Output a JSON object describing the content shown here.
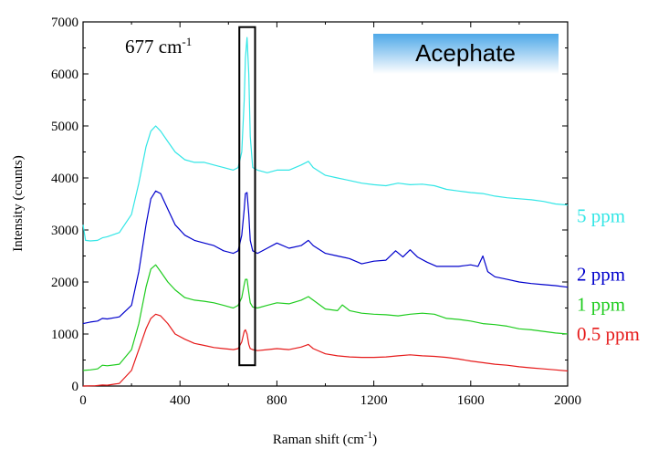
{
  "chart_data": {
    "type": "line",
    "title": "Acephate",
    "xlabel": "Raman shift (cm",
    "xlabel_sup": "-1",
    "xlabel_end": ")",
    "ylabel": "Intensity (counts)",
    "xlim": [
      0,
      2000
    ],
    "ylim": [
      0,
      7000
    ],
    "xticks": [
      0,
      400,
      800,
      1200,
      1600,
      2000
    ],
    "yticks": [
      0,
      1000,
      2000,
      3000,
      4000,
      5000,
      6000,
      7000
    ],
    "xtick_labels": [
      "0",
      "400",
      "800",
      "1200",
      "1600",
      "2000"
    ],
    "ytick_labels": [
      "0",
      "1000",
      "2000",
      "3000",
      "4000",
      "5000",
      "6000",
      "7000"
    ],
    "grid": false,
    "annotation": {
      "text": "677 cm",
      "sup": "-1",
      "box_x_range": [
        645,
        710
      ],
      "box_y_range": [
        400,
        6900
      ]
    },
    "title_box_colors": [
      "#4ea8e8",
      "#ffffff"
    ],
    "series": [
      {
        "name": "5 ppm",
        "color": "#33e6e6",
        "x": [
          0,
          10,
          30,
          60,
          80,
          100,
          150,
          200,
          230,
          260,
          280,
          300,
          320,
          350,
          380,
          420,
          460,
          500,
          540,
          580,
          620,
          640,
          655,
          665,
          670,
          677,
          684,
          690,
          700,
          720,
          760,
          800,
          850,
          900,
          930,
          950,
          1000,
          1050,
          1100,
          1150,
          1200,
          1250,
          1300,
          1350,
          1400,
          1450,
          1500,
          1550,
          1600,
          1650,
          1700,
          1750,
          1800,
          1850,
          1900,
          1950,
          2000
        ],
        "y": [
          3100,
          2800,
          2790,
          2800,
          2850,
          2870,
          2950,
          3300,
          3900,
          4600,
          4900,
          5000,
          4900,
          4700,
          4500,
          4350,
          4300,
          4300,
          4250,
          4200,
          4150,
          4200,
          4500,
          5500,
          6300,
          6700,
          6000,
          4800,
          4200,
          4150,
          4100,
          4150,
          4150,
          4250,
          4320,
          4200,
          4050,
          4000,
          3950,
          3900,
          3870,
          3850,
          3900,
          3870,
          3880,
          3850,
          3780,
          3750,
          3720,
          3700,
          3650,
          3620,
          3600,
          3580,
          3550,
          3500,
          3480
        ]
      },
      {
        "name": "2 ppm",
        "color": "#0000cc",
        "x": [
          0,
          30,
          60,
          80,
          100,
          150,
          200,
          230,
          260,
          280,
          300,
          320,
          350,
          380,
          420,
          460,
          500,
          540,
          580,
          620,
          640,
          655,
          665,
          670,
          677,
          684,
          690,
          700,
          720,
          760,
          800,
          850,
          900,
          930,
          950,
          1000,
          1050,
          1100,
          1150,
          1200,
          1250,
          1290,
          1320,
          1350,
          1380,
          1420,
          1460,
          1500,
          1550,
          1600,
          1630,
          1650,
          1670,
          1700,
          1750,
          1800,
          1850,
          1900,
          1950,
          2000
        ],
        "y": [
          1200,
          1230,
          1250,
          1300,
          1290,
          1330,
          1550,
          2200,
          3100,
          3600,
          3750,
          3700,
          3400,
          3100,
          2900,
          2800,
          2750,
          2700,
          2600,
          2550,
          2600,
          2900,
          3400,
          3700,
          3720,
          3300,
          2800,
          2600,
          2550,
          2650,
          2750,
          2650,
          2700,
          2800,
          2700,
          2550,
          2500,
          2450,
          2350,
          2400,
          2420,
          2600,
          2480,
          2620,
          2480,
          2380,
          2300,
          2300,
          2300,
          2330,
          2300,
          2500,
          2200,
          2100,
          2050,
          2000,
          1970,
          1950,
          1930,
          1900
        ]
      },
      {
        "name": "1 ppm",
        "color": "#1fcc1f",
        "x": [
          0,
          30,
          60,
          80,
          100,
          150,
          200,
          230,
          260,
          280,
          300,
          320,
          350,
          380,
          420,
          460,
          500,
          540,
          580,
          620,
          640,
          655,
          665,
          670,
          677,
          684,
          690,
          700,
          720,
          760,
          800,
          850,
          900,
          930,
          950,
          1000,
          1050,
          1070,
          1100,
          1150,
          1200,
          1250,
          1300,
          1350,
          1400,
          1450,
          1500,
          1550,
          1600,
          1650,
          1700,
          1750,
          1800,
          1850,
          1900,
          1950,
          2000
        ],
        "y": [
          300,
          310,
          330,
          400,
          390,
          420,
          700,
          1200,
          1900,
          2250,
          2330,
          2200,
          2000,
          1850,
          1700,
          1650,
          1630,
          1600,
          1550,
          1500,
          1550,
          1700,
          1950,
          2050,
          2050,
          1800,
          1600,
          1520,
          1500,
          1550,
          1600,
          1580,
          1650,
          1720,
          1650,
          1480,
          1450,
          1560,
          1450,
          1400,
          1380,
          1370,
          1350,
          1380,
          1400,
          1380,
          1300,
          1280,
          1250,
          1200,
          1180,
          1150,
          1100,
          1080,
          1050,
          1020,
          1000
        ]
      },
      {
        "name": "0.5 ppm",
        "color": "#e61a1a",
        "x": [
          0,
          50,
          80,
          100,
          150,
          200,
          230,
          260,
          280,
          300,
          320,
          350,
          380,
          420,
          460,
          500,
          540,
          580,
          620,
          640,
          655,
          665,
          670,
          677,
          684,
          690,
          700,
          720,
          760,
          800,
          850,
          900,
          930,
          950,
          1000,
          1050,
          1100,
          1150,
          1200,
          1250,
          1300,
          1350,
          1400,
          1450,
          1500,
          1550,
          1600,
          1650,
          1700,
          1750,
          1800,
          1850,
          1900,
          1950,
          2000
        ],
        "y": [
          0,
          5,
          20,
          15,
          50,
          300,
          700,
          1100,
          1300,
          1380,
          1350,
          1200,
          1000,
          900,
          820,
          780,
          740,
          720,
          700,
          720,
          850,
          1050,
          1080,
          1000,
          800,
          720,
          700,
          680,
          700,
          720,
          700,
          750,
          800,
          720,
          620,
          580,
          560,
          550,
          550,
          560,
          580,
          600,
          580,
          570,
          550,
          520,
          480,
          450,
          420,
          400,
          370,
          350,
          330,
          310,
          290
        ]
      }
    ],
    "legend_placement": "right of plot, aligned with series ends",
    "legend_y_values": [
      3270,
      2150,
      1570,
      1000
    ]
  }
}
